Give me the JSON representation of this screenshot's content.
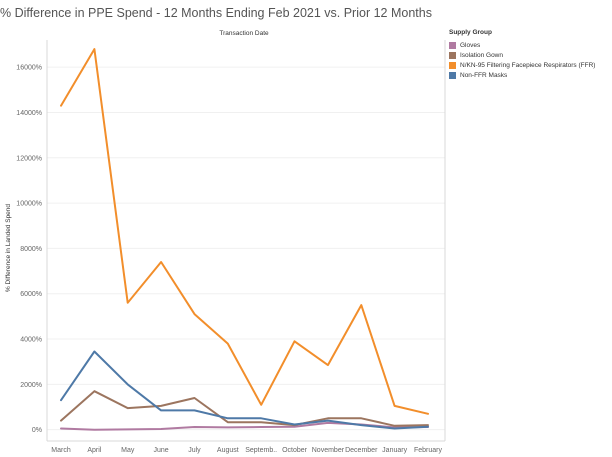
{
  "chart_data": {
    "type": "line",
    "title": "% Difference in PPE Spend - 12 Months Ending Feb 2021 vs. Prior 12 Months",
    "x_header": "Transaction Date",
    "ylabel": "% Difference in Landed Spend",
    "categories": [
      "March",
      "April",
      "May",
      "June",
      "July",
      "August",
      "Septemb..",
      "October",
      "November",
      "December",
      "January",
      "February"
    ],
    "ylim": [
      -500,
      17200
    ],
    "yticks": [
      0,
      2000,
      4000,
      6000,
      8000,
      10000,
      12000,
      14000,
      16000
    ],
    "ytick_labels": [
      "0%",
      "2000%",
      "4000%",
      "6000%",
      "8000%",
      "10000%",
      "12000%",
      "14000%",
      "16000%"
    ],
    "grid": true,
    "legend_title": "Supply Group",
    "legend_position": "right",
    "series": [
      {
        "name": "Gloves",
        "color": "#b07aa1",
        "values": [
          50,
          0,
          10,
          30,
          120,
          100,
          120,
          130,
          300,
          230,
          100,
          120
        ]
      },
      {
        "name": "Isolation Gown",
        "color": "#9c755f",
        "values": [
          400,
          1700,
          950,
          1050,
          1400,
          330,
          330,
          200,
          500,
          500,
          170,
          200
        ]
      },
      {
        "name": "N/KN-95 Filtering Facepiece Respirators (FFR)",
        "color": "#f28e2b",
        "values": [
          14300,
          16800,
          5600,
          7400,
          5100,
          3800,
          1100,
          3900,
          2850,
          5500,
          1050,
          700
        ]
      },
      {
        "name": "Non-FFR Masks",
        "color": "#4e79a7",
        "values": [
          1300,
          3450,
          2000,
          850,
          850,
          500,
          500,
          230,
          400,
          200,
          50,
          130
        ]
      }
    ]
  }
}
